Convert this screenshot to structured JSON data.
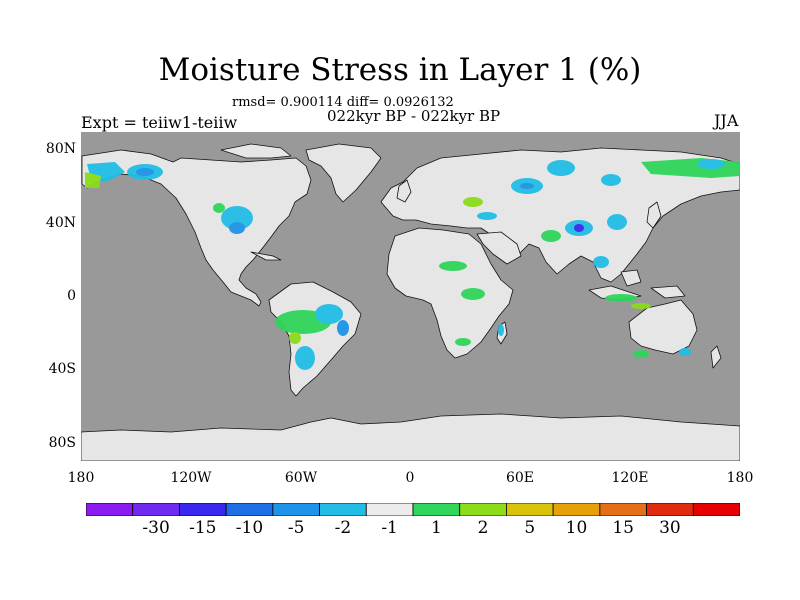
{
  "title": "Moisture Stress in Layer 1 (%)",
  "stats": "rmsd= 0.900114 diff= 0.0926132",
  "period": "022kyr BP - 022kyr BP",
  "experiment": "Expt = teiiw1-teiiw",
  "season": "JJA",
  "map": {
    "ocean_color": "#999999",
    "land_color": "#e6e6e6",
    "lat_ticks": [
      "80N",
      "40N",
      "0",
      "40S",
      "80S"
    ],
    "lon_ticks": [
      "180",
      "120W",
      "60W",
      "0",
      "60E",
      "120E",
      "180"
    ]
  },
  "colorbar": {
    "colors": [
      "#8a1cf0",
      "#6f2cf0",
      "#3b28f0",
      "#1e6fe6",
      "#1f93e8",
      "#22bde6",
      "#ececec",
      "#2fd65a",
      "#8cdc1a",
      "#d8c20a",
      "#e6a10a",
      "#e37016",
      "#e22a0f",
      "#e60000"
    ],
    "labels": [
      "-30",
      "-15",
      "-10",
      "-5",
      "-2",
      "-1",
      "1",
      "2",
      "5",
      "10",
      "15",
      "30"
    ]
  }
}
